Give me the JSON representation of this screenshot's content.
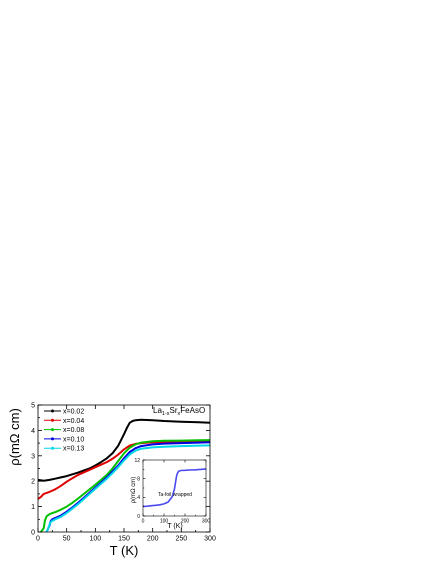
{
  "chart_data": [
    {
      "type": "line",
      "xlabel": "T (K)",
      "ylabel": "ρ(mΩ cm)",
      "annotation": {
        "base": "La",
        "sub1": "1-x",
        "mid": "Sr",
        "sub2": "x",
        "tail": "FeAsO"
      },
      "xlim": [
        0,
        300
      ],
      "ylim": [
        0,
        5
      ],
      "xticks": [
        0,
        50,
        100,
        150,
        200,
        250,
        300
      ],
      "yticks": [
        0,
        1,
        2,
        3,
        4,
        5
      ],
      "legend_position": "top-left",
      "series": [
        {
          "name": "x=0.02",
          "color": "#000000",
          "x": [
            0,
            10,
            20,
            30,
            40,
            50,
            60,
            70,
            80,
            90,
            100,
            110,
            120,
            130,
            140,
            150,
            155,
            160,
            165,
            170,
            180,
            200,
            220,
            250,
            280,
            300
          ],
          "y": [
            2.05,
            2.02,
            2.05,
            2.1,
            2.15,
            2.2,
            2.27,
            2.34,
            2.42,
            2.5,
            2.62,
            2.75,
            2.9,
            3.1,
            3.4,
            3.85,
            4.1,
            4.3,
            4.37,
            4.4,
            4.42,
            4.4,
            4.37,
            4.34,
            4.32,
            4.3
          ]
        },
        {
          "name": "x=0.04",
          "color": "#e00000",
          "x": [
            0,
            5,
            10,
            20,
            30,
            40,
            50,
            60,
            70,
            80,
            90,
            100,
            110,
            120,
            130,
            140,
            150,
            160,
            170,
            180,
            200,
            220,
            250,
            280,
            300
          ],
          "y": [
            1.3,
            1.38,
            1.5,
            1.58,
            1.68,
            1.82,
            1.98,
            2.12,
            2.25,
            2.35,
            2.45,
            2.55,
            2.65,
            2.75,
            2.88,
            3.05,
            3.25,
            3.4,
            3.47,
            3.5,
            3.53,
            3.54,
            3.55,
            3.56,
            3.56
          ]
        },
        {
          "name": "x=0.08",
          "color": "#00c000",
          "x": [
            5,
            10,
            12,
            15,
            20,
            25,
            30,
            40,
            50,
            60,
            70,
            80,
            90,
            100,
            110,
            120,
            130,
            140,
            150,
            160,
            170,
            180,
            200,
            220,
            250,
            280,
            300
          ],
          "y": [
            0,
            0.15,
            0.45,
            0.62,
            0.7,
            0.75,
            0.78,
            0.88,
            1.0,
            1.15,
            1.32,
            1.5,
            1.68,
            1.86,
            2.05,
            2.25,
            2.5,
            2.8,
            3.1,
            3.32,
            3.45,
            3.52,
            3.57,
            3.59,
            3.6,
            3.61,
            3.62
          ]
        },
        {
          "name": "x=0.10",
          "color": "#0000e0",
          "x": [
            15,
            20,
            22,
            25,
            30,
            40,
            50,
            60,
            70,
            80,
            90,
            100,
            110,
            120,
            130,
            140,
            150,
            160,
            170,
            180,
            200,
            220,
            250,
            280,
            300
          ],
          "y": [
            0,
            0.25,
            0.42,
            0.5,
            0.55,
            0.65,
            0.8,
            0.97,
            1.15,
            1.35,
            1.55,
            1.75,
            1.95,
            2.15,
            2.38,
            2.62,
            2.9,
            3.15,
            3.3,
            3.38,
            3.45,
            3.48,
            3.5,
            3.52,
            3.53
          ]
        },
        {
          "name": "x=0.13",
          "color": "#00d8e8",
          "x": [
            15,
            18,
            20,
            22,
            25,
            30,
            40,
            50,
            60,
            70,
            80,
            90,
            100,
            110,
            120,
            130,
            140,
            150,
            160,
            170,
            180,
            200,
            220,
            250,
            280,
            300
          ],
          "y": [
            0,
            0.15,
            0.3,
            0.38,
            0.44,
            0.5,
            0.6,
            0.75,
            0.92,
            1.1,
            1.3,
            1.5,
            1.7,
            1.9,
            2.1,
            2.32,
            2.56,
            2.82,
            3.05,
            3.2,
            3.28,
            3.33,
            3.36,
            3.38,
            3.4,
            3.41
          ]
        }
      ]
    },
    {
      "type": "line",
      "xlabel": "T (K)",
      "ylabel": "ρ(mΩ cm)",
      "annotation": "Ta-foil wrapped",
      "xlim": [
        0,
        300
      ],
      "ylim": [
        0,
        12
      ],
      "xticks": [
        0,
        100,
        200,
        300
      ],
      "yticks": [
        0,
        4,
        8,
        12
      ],
      "series": [
        {
          "name": "",
          "color": "#4a4af0",
          "x": [
            0,
            10,
            20,
            40,
            60,
            80,
            100,
            120,
            140,
            150,
            155,
            160,
            165,
            170,
            180,
            200,
            220,
            250,
            280,
            300
          ],
          "y": [
            2.1,
            2.05,
            2.1,
            2.2,
            2.3,
            2.4,
            2.6,
            3.0,
            4.2,
            5.8,
            7.3,
            8.6,
            9.3,
            9.6,
            9.75,
            9.8,
            9.85,
            9.9,
            10.0,
            10.1
          ]
        }
      ]
    }
  ]
}
